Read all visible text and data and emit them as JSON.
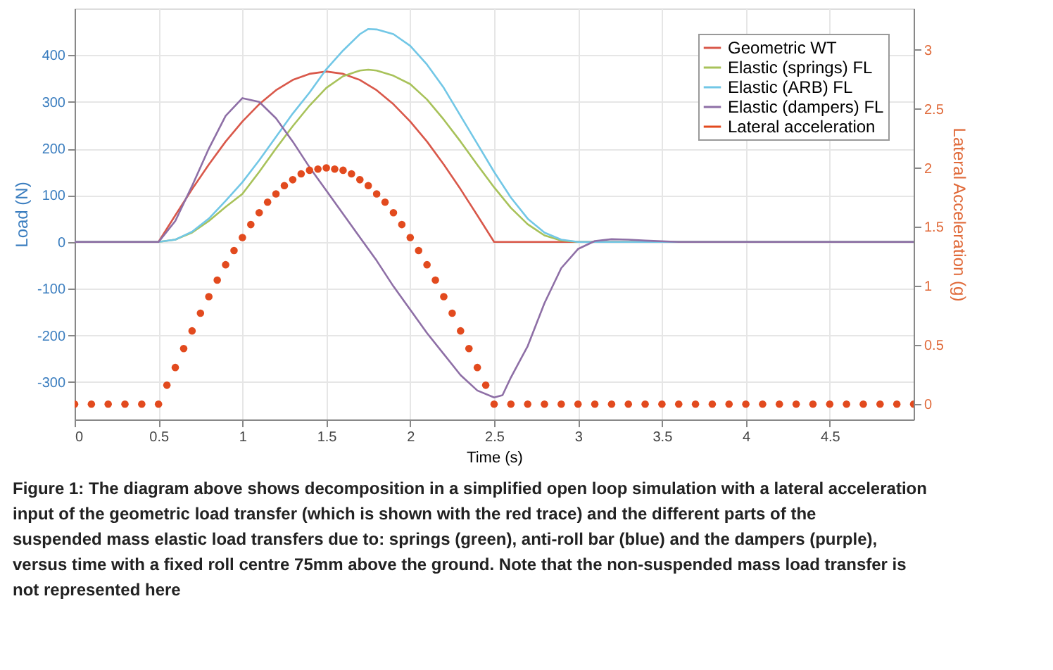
{
  "chart_data": {
    "type": "line",
    "xlabel": "Time (s)",
    "ylabel": "Load (N)",
    "y2label": "Lateral Acceleration (g)",
    "xlim": [
      0,
      5
    ],
    "xticks": [
      0,
      0.5,
      1,
      1.5,
      2,
      2.5,
      3,
      3.5,
      4,
      4.5
    ],
    "ylim": [
      -380,
      500
    ],
    "yticks": [
      -300,
      -200,
      -100,
      0,
      100,
      200,
      300,
      400
    ],
    "y2lim": [
      -0.13,
      3.35
    ],
    "y2ticks": [
      0,
      0.5,
      1,
      1.5,
      2,
      2.5,
      3
    ],
    "grid": true,
    "legend": "top right",
    "line_style": "solid",
    "series": [
      {
        "name": "Geometric WT",
        "color": "#d9584a",
        "x": [
          0,
          0.5,
          0.6,
          0.7,
          0.8,
          0.9,
          1.0,
          1.1,
          1.2,
          1.3,
          1.4,
          1.5,
          1.6,
          1.7,
          1.8,
          1.9,
          2.0,
          2.1,
          2.2,
          2.3,
          2.4,
          2.5,
          5
        ],
        "values": [
          0,
          0,
          57,
          113,
          166,
          215,
          258,
          295,
          325,
          347,
          360,
          365,
          360,
          347,
          325,
          295,
          258,
          215,
          166,
          113,
          57,
          0,
          0
        ]
      },
      {
        "name": "Elastic (springs) FL",
        "color": "#a8c25a",
        "x": [
          0,
          0.5,
          0.6,
          0.7,
          0.8,
          0.9,
          1.0,
          1.1,
          1.2,
          1.3,
          1.4,
          1.5,
          1.6,
          1.7,
          1.75,
          1.8,
          1.9,
          2.0,
          2.1,
          2.2,
          2.3,
          2.4,
          2.5,
          2.6,
          2.7,
          2.8,
          2.9,
          3.0,
          5
        ],
        "values": [
          0,
          0,
          5,
          20,
          45,
          75,
          103,
          150,
          200,
          248,
          292,
          330,
          355,
          367,
          369,
          367,
          356,
          338,
          305,
          262,
          215,
          165,
          117,
          73,
          38,
          14,
          3,
          0,
          0
        ]
      },
      {
        "name": "Elastic (ARB) FL",
        "color": "#72c7e6",
        "x": [
          0,
          0.5,
          0.6,
          0.7,
          0.8,
          0.9,
          1.0,
          1.1,
          1.2,
          1.3,
          1.4,
          1.5,
          1.6,
          1.7,
          1.75,
          1.8,
          1.9,
          2.0,
          2.1,
          2.2,
          2.3,
          2.4,
          2.5,
          2.6,
          2.7,
          2.8,
          2.9,
          3.0,
          5
        ],
        "values": [
          0,
          0,
          5,
          22,
          50,
          88,
          128,
          175,
          225,
          275,
          320,
          370,
          410,
          445,
          456,
          455,
          445,
          420,
          380,
          330,
          270,
          210,
          150,
          95,
          50,
          20,
          5,
          0,
          0
        ]
      },
      {
        "name": "Elastic (dampers) FL",
        "color": "#8e6fa6",
        "x": [
          0,
          0.5,
          0.6,
          0.7,
          0.8,
          0.9,
          1.0,
          1.1,
          1.2,
          1.3,
          1.4,
          1.5,
          1.6,
          1.7,
          1.8,
          1.9,
          2.0,
          2.1,
          2.2,
          2.3,
          2.4,
          2.5,
          2.55,
          2.6,
          2.7,
          2.8,
          2.9,
          3.0,
          3.1,
          3.2,
          3.3,
          3.4,
          3.6,
          5
        ],
        "values": [
          0,
          0,
          45,
          120,
          200,
          270,
          308,
          300,
          265,
          215,
          160,
          110,
          60,
          10,
          -40,
          -95,
          -145,
          -195,
          -240,
          -285,
          -318,
          -333,
          -328,
          -290,
          -223,
          -131,
          -56,
          -15,
          2,
          6,
          5,
          3,
          0,
          0
        ]
      },
      {
        "name": "Lateral acceleration",
        "color": "#e24a1e",
        "type": "scatter",
        "axis": "y2",
        "marker": "circle",
        "x": [
          0,
          0.1,
          0.2,
          0.3,
          0.4,
          0.5,
          0.55,
          0.6,
          0.65,
          0.7,
          0.75,
          0.8,
          0.85,
          0.9,
          0.95,
          1.0,
          1.05,
          1.1,
          1.15,
          1.2,
          1.25,
          1.3,
          1.35,
          1.4,
          1.45,
          1.5,
          1.55,
          1.6,
          1.65,
          1.7,
          1.75,
          1.8,
          1.85,
          1.9,
          1.95,
          2.0,
          2.05,
          2.1,
          2.15,
          2.2,
          2.25,
          2.3,
          2.35,
          2.4,
          2.45,
          2.5,
          2.6,
          2.7,
          2.8,
          2.9,
          3.0,
          3.1,
          3.2,
          3.3,
          3.4,
          3.5,
          3.6,
          3.7,
          3.8,
          3.9,
          4.0,
          4.1,
          4.2,
          4.3,
          4.4,
          4.5,
          4.6,
          4.7,
          4.8,
          4.9,
          5.0
        ],
        "values": [
          0,
          0,
          0,
          0,
          0,
          0,
          0.16,
          0.31,
          0.47,
          0.62,
          0.77,
          0.91,
          1.05,
          1.18,
          1.3,
          1.41,
          1.52,
          1.62,
          1.71,
          1.78,
          1.85,
          1.9,
          1.95,
          1.98,
          1.99,
          2.0,
          1.99,
          1.98,
          1.95,
          1.9,
          1.85,
          1.78,
          1.71,
          1.62,
          1.52,
          1.41,
          1.3,
          1.18,
          1.05,
          0.91,
          0.77,
          0.62,
          0.47,
          0.31,
          0.16,
          0,
          0,
          0,
          0,
          0,
          0,
          0,
          0,
          0,
          0,
          0,
          0,
          0,
          0,
          0,
          0,
          0,
          0,
          0,
          0,
          0,
          0,
          0,
          0,
          0,
          0
        ]
      }
    ],
    "annotations": [
      "Figure 1: The diagram above shows decomposition in a simplified open loop simulation with a lateral acceleration input of the geometric load transfer (which is shown with the red trace) and the different parts of the suspended mass elastic load transfers due to: springs (green), anti-roll bar (blue) and the dampers (purple), versus time with a fixed roll centre 75mm above the ground. Note that the non-suspended mass load transfer is not represented here"
    ]
  }
}
